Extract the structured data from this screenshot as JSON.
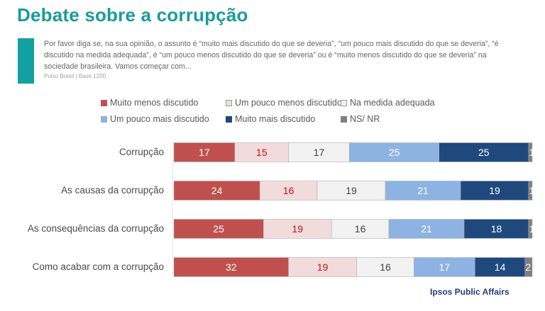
{
  "header": {
    "title": "Debate sobre a corrupção",
    "question": "Por favor diga se, na sua opinião, o assunto é “muito mais discutido do que se deveria”, “um pouco mais discutido do que se deveria”, “é discutido na medida adequada”, é “um pouco menos discutido do que se deveria” ou é “muito menos discutido do que se deveria” na sociedade brasileira. Vamos começar com...",
    "source": "Pulso Brasil | Base 1200"
  },
  "footer": {
    "brand": "Ipsos Public Affairs"
  },
  "colors": {
    "accent": "#12a1a0",
    "title": "#1a9c9c"
  },
  "chart_data": {
    "type": "bar",
    "orientation": "horizontal",
    "stacked": true,
    "percent": true,
    "title": "",
    "xlabel": "",
    "ylabel": "",
    "xlim": [
      0,
      100
    ],
    "grid": false,
    "legend_position": "top",
    "categories": [
      "Corrupção",
      "As causas da corrupção",
      "As consequências da corrupção",
      "Como acabar com a corrupção"
    ],
    "series": [
      {
        "name": "Muito menos discutido",
        "color": "#c0504d",
        "label_color": "#ffffff",
        "values": [
          17,
          24,
          25,
          32
        ]
      },
      {
        "name": "Um pouco menos discutido",
        "color": "#f2dcdb",
        "label_color": "#c0101a",
        "values": [
          15,
          16,
          19,
          19
        ]
      },
      {
        "name": "Na medida adequada",
        "color": "#f2f2f2",
        "label_color": "#404040",
        "values": [
          17,
          19,
          16,
          16
        ]
      },
      {
        "name": "Um pouco mais discutido",
        "color": "#8db3e2",
        "label_color": "#ffffff",
        "values": [
          25,
          21,
          21,
          17
        ]
      },
      {
        "name": "Muito mais discutido",
        "color": "#1f497d",
        "label_color": "#ffffff",
        "values": [
          25,
          19,
          18,
          14
        ]
      },
      {
        "name": "NS/ NR",
        "color": "#7f7f7f",
        "label_color": "#ffffff",
        "values": [
          1,
          1,
          1,
          2
        ]
      }
    ]
  }
}
